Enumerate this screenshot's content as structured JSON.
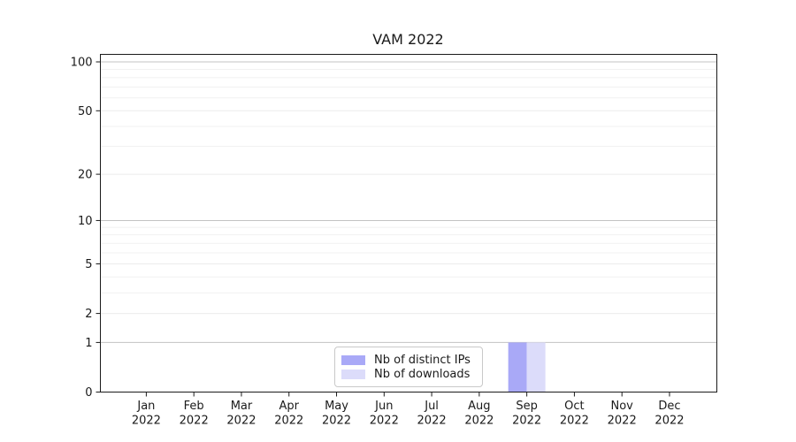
{
  "chart_data": {
    "type": "bar",
    "title": "VAM 2022",
    "categories": [
      "Jan 2022",
      "Feb 2022",
      "Mar 2022",
      "Apr 2022",
      "May 2022",
      "Jun 2022",
      "Jul 2022",
      "Aug 2022",
      "Sep 2022",
      "Oct 2022",
      "Nov 2022",
      "Dec 2022"
    ],
    "x_labels": [
      [
        "Jan",
        "2022"
      ],
      [
        "Feb",
        "2022"
      ],
      [
        "Mar",
        "2022"
      ],
      [
        "Apr",
        "2022"
      ],
      [
        "May",
        "2022"
      ],
      [
        "Jun",
        "2022"
      ],
      [
        "Jul",
        "2022"
      ],
      [
        "Aug",
        "2022"
      ],
      [
        "Sep",
        "2022"
      ],
      [
        "Oct",
        "2022"
      ],
      [
        "Nov",
        "2022"
      ],
      [
        "Dec",
        "2022"
      ]
    ],
    "series": [
      {
        "name": "Nb of distinct IPs",
        "color": "#a9a9f7",
        "values": [
          0,
          0,
          0,
          0,
          0,
          0,
          0,
          0,
          1,
          0,
          0,
          0
        ]
      },
      {
        "name": "Nb of downloads",
        "color": "#dcdcfa",
        "values": [
          0,
          0,
          0,
          0,
          0,
          0,
          0,
          0,
          1,
          0,
          0,
          0
        ]
      }
    ],
    "xlabel": "",
    "ylabel": "",
    "y_scale": "log1p",
    "ylim": [
      0,
      112
    ],
    "y_major_ticks": [
      0,
      1,
      2,
      5,
      10,
      20,
      50,
      100
    ],
    "y_minor_gridlines": [
      3,
      4,
      6,
      7,
      8,
      9,
      30,
      40,
      60,
      70,
      80,
      90
    ],
    "grid": "horizontal major+minor",
    "legend_position": "lower center-left",
    "colors": {
      "strong_gridline": "#c3c3c3",
      "major_gridline": "#ececec",
      "minor_gridline": "#f1f1f1",
      "axis": "#1a1a1a",
      "text": "#1a1a1a"
    }
  }
}
